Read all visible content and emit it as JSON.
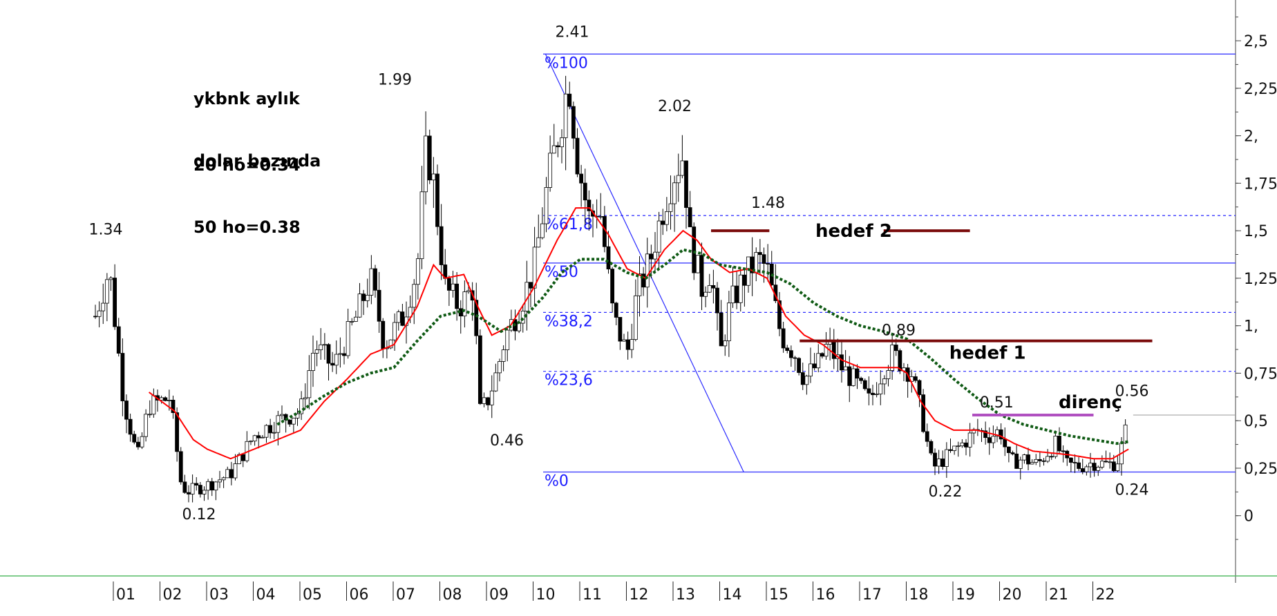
{
  "notes": {
    "title_line1": "ykbnk aylık",
    "title_line2": "dolar bazında",
    "ma20": "20 ho=0.34",
    "ma50": "50 ho=0.38"
  },
  "chart_data": {
    "type": "candlestick",
    "ylim": [
      -0.15,
      2.7
    ],
    "yticks": [
      {
        "v": 2.5,
        "label": "2,5"
      },
      {
        "v": 2.25,
        "label": "2,25"
      },
      {
        "v": 2.0,
        "label": "2,"
      },
      {
        "v": 1.75,
        "label": "1,75"
      },
      {
        "v": 1.5,
        "label": "1,5"
      },
      {
        "v": 1.25,
        "label": "1,25"
      },
      {
        "v": 1.0,
        "label": "1,"
      },
      {
        "v": 0.75,
        "label": "0,75"
      },
      {
        "v": 0.5,
        "label": "0,5"
      },
      {
        "v": 0.25,
        "label": "0,25"
      },
      {
        "v": 0.0,
        "label": "0"
      }
    ],
    "xticks": [
      "01",
      "02",
      "03",
      "04",
      "05",
      "06",
      "07",
      "08",
      "09",
      "10",
      "11",
      "12",
      "13",
      "14",
      "15",
      "16",
      "17",
      "18",
      "19",
      "20",
      "21",
      "22"
    ],
    "xlim": [
      2000.6,
      2024.0
    ],
    "price_waypoints": [
      [
        2000.6,
        1.05
      ],
      [
        2000.9,
        1.3
      ],
      [
        2001.2,
        0.62
      ],
      [
        2001.5,
        0.3
      ],
      [
        2001.75,
        0.58
      ],
      [
        2002.2,
        0.62
      ],
      [
        2002.45,
        0.15
      ],
      [
        2002.6,
        0.13
      ],
      [
        2003.0,
        0.16
      ],
      [
        2003.5,
        0.22
      ],
      [
        2004.0,
        0.42
      ],
      [
        2004.5,
        0.5
      ],
      [
        2005.0,
        0.55
      ],
      [
        2005.3,
        0.9
      ],
      [
        2005.7,
        0.78
      ],
      [
        2006.2,
        1.05
      ],
      [
        2006.5,
        1.25
      ],
      [
        2006.8,
        0.9
      ],
      [
        2007.2,
        1.05
      ],
      [
        2007.5,
        1.3
      ],
      [
        2007.7,
        1.95
      ],
      [
        2007.85,
        1.75
      ],
      [
        2008.1,
        1.2
      ],
      [
        2008.4,
        1.1
      ],
      [
        2008.7,
        1.2
      ],
      [
        2008.85,
        0.55
      ],
      [
        2009.0,
        0.6
      ],
      [
        2009.2,
        0.75
      ],
      [
        2009.4,
        0.95
      ],
      [
        2009.7,
        1.1
      ],
      [
        2010.0,
        1.3
      ],
      [
        2010.3,
        1.75
      ],
      [
        2010.6,
        2.1
      ],
      [
        2010.75,
        2.3
      ],
      [
        2010.95,
        1.85
      ],
      [
        2011.2,
        1.55
      ],
      [
        2011.4,
        1.65
      ],
      [
        2011.7,
        1.05
      ],
      [
        2012.0,
        0.85
      ],
      [
        2012.2,
        1.15
      ],
      [
        2012.5,
        1.35
      ],
      [
        2012.8,
        1.65
      ],
      [
        2013.0,
        1.8
      ],
      [
        2013.2,
        1.9
      ],
      [
        2013.35,
        1.45
      ],
      [
        2013.6,
        1.2
      ],
      [
        2013.8,
        1.3
      ],
      [
        2014.0,
        0.85
      ],
      [
        2014.2,
        1.1
      ],
      [
        2014.5,
        1.25
      ],
      [
        2014.8,
        1.35
      ],
      [
        2015.0,
        1.3
      ],
      [
        2015.3,
        0.95
      ],
      [
        2015.6,
        0.85
      ],
      [
        2015.8,
        0.72
      ],
      [
        2016.1,
        0.8
      ],
      [
        2016.3,
        0.9
      ],
      [
        2016.6,
        0.78
      ],
      [
        2016.9,
        0.7
      ],
      [
        2017.2,
        0.6
      ],
      [
        2017.5,
        0.78
      ],
      [
        2017.7,
        0.85
      ],
      [
        2017.9,
        0.8
      ],
      [
        2018.1,
        0.75
      ],
      [
        2018.3,
        0.55
      ],
      [
        2018.5,
        0.3
      ],
      [
        2018.6,
        0.26
      ],
      [
        2018.9,
        0.32
      ],
      [
        2019.2,
        0.38
      ],
      [
        2019.5,
        0.45
      ],
      [
        2019.8,
        0.42
      ],
      [
        2020.0,
        0.45
      ],
      [
        2020.2,
        0.28
      ],
      [
        2020.5,
        0.3
      ],
      [
        2020.8,
        0.27
      ],
      [
        2021.0,
        0.33
      ],
      [
        2021.2,
        0.38
      ],
      [
        2021.4,
        0.27
      ],
      [
        2021.7,
        0.26
      ],
      [
        2022.0,
        0.28
      ],
      [
        2022.3,
        0.27
      ],
      [
        2022.5,
        0.28
      ],
      [
        2022.65,
        0.4
      ],
      [
        2022.75,
        0.52
      ]
    ],
    "ma20_waypoints": [
      [
        2001.75,
        0.65
      ],
      [
        2002.3,
        0.55
      ],
      [
        2002.7,
        0.4
      ],
      [
        2003.0,
        0.35
      ],
      [
        2003.5,
        0.3
      ],
      [
        2004.0,
        0.35
      ],
      [
        2004.5,
        0.4
      ],
      [
        2005.0,
        0.45
      ],
      [
        2005.5,
        0.6
      ],
      [
        2006.0,
        0.72
      ],
      [
        2006.5,
        0.85
      ],
      [
        2007.0,
        0.9
      ],
      [
        2007.5,
        1.1
      ],
      [
        2007.85,
        1.32
      ],
      [
        2008.1,
        1.25
      ],
      [
        2008.5,
        1.27
      ],
      [
        2008.8,
        1.1
      ],
      [
        2009.1,
        0.95
      ],
      [
        2009.5,
        1.0
      ],
      [
        2010.0,
        1.2
      ],
      [
        2010.5,
        1.45
      ],
      [
        2010.9,
        1.62
      ],
      [
        2011.2,
        1.62
      ],
      [
        2011.6,
        1.48
      ],
      [
        2012.0,
        1.3
      ],
      [
        2012.4,
        1.25
      ],
      [
        2012.8,
        1.4
      ],
      [
        2013.2,
        1.5
      ],
      [
        2013.5,
        1.45
      ],
      [
        2013.8,
        1.35
      ],
      [
        2014.2,
        1.28
      ],
      [
        2014.6,
        1.3
      ],
      [
        2015.0,
        1.25
      ],
      [
        2015.4,
        1.05
      ],
      [
        2015.8,
        0.95
      ],
      [
        2016.2,
        0.9
      ],
      [
        2016.6,
        0.82
      ],
      [
        2017.0,
        0.78
      ],
      [
        2017.4,
        0.78
      ],
      [
        2017.8,
        0.78
      ],
      [
        2018.0,
        0.75
      ],
      [
        2018.3,
        0.6
      ],
      [
        2018.6,
        0.5
      ],
      [
        2019.0,
        0.45
      ],
      [
        2019.5,
        0.45
      ],
      [
        2020.0,
        0.42
      ],
      [
        2020.3,
        0.38
      ],
      [
        2020.7,
        0.34
      ],
      [
        2021.1,
        0.33
      ],
      [
        2021.5,
        0.32
      ],
      [
        2022.0,
        0.3
      ],
      [
        2022.4,
        0.3
      ],
      [
        2022.75,
        0.35
      ]
    ],
    "ma50_waypoints": [
      [
        2004.5,
        0.48
      ],
      [
        2005.0,
        0.55
      ],
      [
        2005.5,
        0.63
      ],
      [
        2006.0,
        0.7
      ],
      [
        2006.5,
        0.75
      ],
      [
        2007.0,
        0.78
      ],
      [
        2007.5,
        0.92
      ],
      [
        2008.0,
        1.05
      ],
      [
        2008.5,
        1.08
      ],
      [
        2008.8,
        1.05
      ],
      [
        2009.3,
        0.97
      ],
      [
        2009.7,
        1.02
      ],
      [
        2010.2,
        1.15
      ],
      [
        2010.6,
        1.28
      ],
      [
        2011.0,
        1.35
      ],
      [
        2011.5,
        1.35
      ],
      [
        2012.0,
        1.28
      ],
      [
        2012.4,
        1.25
      ],
      [
        2012.8,
        1.32
      ],
      [
        2013.2,
        1.4
      ],
      [
        2013.6,
        1.38
      ],
      [
        2014.0,
        1.32
      ],
      [
        2014.5,
        1.3
      ],
      [
        2015.0,
        1.28
      ],
      [
        2015.5,
        1.22
      ],
      [
        2016.0,
        1.12
      ],
      [
        2016.5,
        1.05
      ],
      [
        2017.0,
        1.0
      ],
      [
        2017.5,
        0.97
      ],
      [
        2018.0,
        0.93
      ],
      [
        2018.5,
        0.83
      ],
      [
        2019.0,
        0.72
      ],
      [
        2019.5,
        0.62
      ],
      [
        2020.0,
        0.53
      ],
      [
        2020.5,
        0.48
      ],
      [
        2021.0,
        0.45
      ],
      [
        2021.5,
        0.42
      ],
      [
        2022.0,
        0.4
      ],
      [
        2022.5,
        0.38
      ],
      [
        2022.75,
        0.39
      ]
    ],
    "fibonacci": [
      {
        "level": 2.43,
        "label": "%100",
        "style": "solid"
      },
      {
        "level": 1.58,
        "label": "%61,8",
        "style": "dashed"
      },
      {
        "level": 1.33,
        "label": "%50",
        "style": "solid"
      },
      {
        "level": 1.07,
        "label": "%38,2",
        "style": "dashed"
      },
      {
        "level": 0.76,
        "label": "%23,6",
        "style": "dashed"
      },
      {
        "level": 0.23,
        "label": "%0",
        "style": "solid"
      }
    ],
    "fib_x_start": 2010.2,
    "trend_line": {
      "from": [
        2010.25,
        2.43
      ],
      "to": [
        2014.5,
        0.23
      ]
    },
    "price_labels": [
      {
        "text": "1.34",
        "x": 2001.2,
        "y": 1.48
      },
      {
        "text": "0.12",
        "x": 2003.2,
        "y": -0.02
      },
      {
        "text": "1.99",
        "x": 2007.4,
        "y": 2.27
      },
      {
        "text": "0.46",
        "x": 2009.8,
        "y": 0.37
      },
      {
        "text": "2.41",
        "x": 2011.2,
        "y": 2.52
      },
      {
        "text": "2.02",
        "x": 2013.4,
        "y": 2.13
      },
      {
        "text": "1.48",
        "x": 2015.4,
        "y": 1.62
      },
      {
        "text": "0.89",
        "x": 2018.2,
        "y": 0.95
      },
      {
        "text": "0.22",
        "x": 2019.2,
        "y": 0.1
      },
      {
        "text": "0.51",
        "x": 2020.3,
        "y": 0.57
      },
      {
        "text": "0.24",
        "x": 2023.2,
        "y": 0.11
      },
      {
        "text": "0.56",
        "x": 2023.2,
        "y": 0.63
      }
    ],
    "hedef2": {
      "label": "hedef 2",
      "level": 1.5,
      "segments": [
        [
          2013.8,
          2015.05
        ],
        [
          2017.5,
          2019.35
        ]
      ],
      "label_x": 2016.6
    },
    "hedef1": {
      "label": "hedef 1",
      "level": 0.92,
      "segment": [
        2015.7,
        2024.0
      ],
      "label_x": 2019.5
    },
    "direnc": {
      "label": "direnç",
      "level": 0.53,
      "segment": [
        2019.4,
        2022.0
      ],
      "label_x": 2021.4
    },
    "last_price_line": {
      "level": 0.53,
      "from": 2022.85
    },
    "colors": {
      "candle": "#000000",
      "ma20": "#ff0000",
      "ma50": "#0f5a14",
      "fib": "#2a2aff",
      "hedef": "#7a0a0a",
      "direnc": "#b050c0",
      "axis": "#444444",
      "baseline": "#55bb66"
    }
  }
}
